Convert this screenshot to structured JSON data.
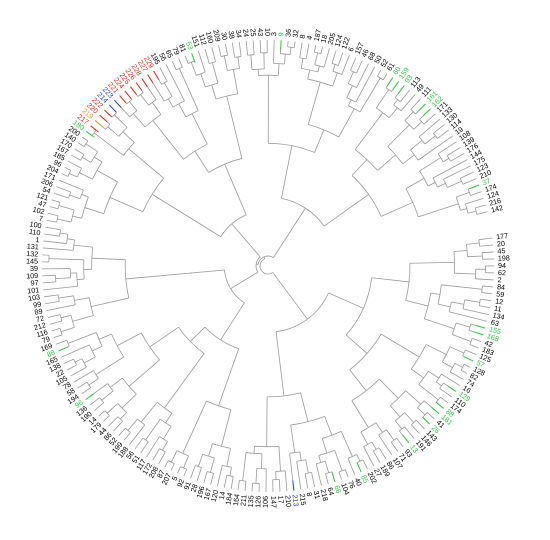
{
  "tree": {
    "colors": {
      "default": "#000000",
      "green": "#2ecc40",
      "red": "#e8261c",
      "blue": "#1f3fe0",
      "orange": "#e8a21c",
      "yellow": "#e6d21a"
    },
    "leaves": [
      {
        "label": "177",
        "color": "default"
      },
      {
        "label": "20",
        "color": "default"
      },
      {
        "label": "45",
        "color": "default"
      },
      {
        "label": "198",
        "color": "default"
      },
      {
        "label": "94",
        "color": "default"
      },
      {
        "label": "62",
        "color": "default"
      },
      {
        "label": "2",
        "color": "default"
      },
      {
        "label": "84",
        "color": "default"
      },
      {
        "label": "59",
        "color": "default"
      },
      {
        "label": "12",
        "color": "default"
      },
      {
        "label": "11",
        "color": "default"
      },
      {
        "label": "134",
        "color": "default"
      },
      {
        "label": "63",
        "color": "default"
      },
      {
        "label": "155",
        "color": "green"
      },
      {
        "label": "168",
        "color": "green"
      },
      {
        "label": "42",
        "color": "default"
      },
      {
        "label": "183",
        "color": "default"
      },
      {
        "label": "125",
        "color": "default"
      },
      {
        "label": "57",
        "color": "green"
      },
      {
        "label": "128",
        "color": "default"
      },
      {
        "label": "82",
        "color": "default"
      },
      {
        "label": "74",
        "color": "default"
      },
      {
        "label": "16",
        "color": "default"
      },
      {
        "label": "129",
        "color": "green"
      },
      {
        "label": "110",
        "color": "default"
      },
      {
        "label": "174",
        "color": "default"
      },
      {
        "label": "88",
        "color": "green"
      },
      {
        "label": "181",
        "color": "green"
      },
      {
        "label": "41",
        "color": "default"
      },
      {
        "label": "26",
        "color": "green"
      },
      {
        "label": "143",
        "color": "default"
      },
      {
        "label": "146",
        "color": "default"
      },
      {
        "label": "191",
        "color": "default"
      },
      {
        "label": "13",
        "color": "green"
      },
      {
        "label": "93",
        "color": "default"
      },
      {
        "label": "71",
        "color": "default"
      },
      {
        "label": "107",
        "color": "default"
      },
      {
        "label": "86",
        "color": "default"
      },
      {
        "label": "189",
        "color": "default"
      },
      {
        "label": "27",
        "color": "default"
      },
      {
        "label": "202",
        "color": "default"
      },
      {
        "label": "85",
        "color": "green"
      },
      {
        "label": "40",
        "color": "default"
      },
      {
        "label": "76",
        "color": "default"
      },
      {
        "label": "104",
        "color": "default"
      },
      {
        "label": "66",
        "color": "green"
      },
      {
        "label": "64",
        "color": "default"
      },
      {
        "label": "218",
        "color": "default"
      },
      {
        "label": "31",
        "color": "default"
      },
      {
        "label": "8",
        "color": "default"
      },
      {
        "label": "215",
        "color": "default"
      },
      {
        "label": "213",
        "color": "blue"
      },
      {
        "label": "210",
        "color": "default"
      },
      {
        "label": "17",
        "color": "default"
      },
      {
        "label": "147",
        "color": "default"
      },
      {
        "label": "106",
        "color": "default"
      },
      {
        "label": "126",
        "color": "default"
      },
      {
        "label": "135",
        "color": "default"
      },
      {
        "label": "211",
        "color": "default"
      },
      {
        "label": "164",
        "color": "default"
      },
      {
        "label": "184",
        "color": "default"
      },
      {
        "label": "14",
        "color": "default"
      },
      {
        "label": "120",
        "color": "default"
      },
      {
        "label": "167",
        "color": "default"
      },
      {
        "label": "196",
        "color": "default"
      },
      {
        "label": "28",
        "color": "default"
      },
      {
        "label": "91",
        "color": "default"
      },
      {
        "label": "92",
        "color": "default"
      },
      {
        "label": "5",
        "color": "default"
      },
      {
        "label": "207",
        "color": "default"
      },
      {
        "label": "87",
        "color": "default"
      },
      {
        "label": "208",
        "color": "default"
      },
      {
        "label": "172",
        "color": "default"
      },
      {
        "label": "117",
        "color": "default"
      },
      {
        "label": "51",
        "color": "default"
      },
      {
        "label": "56",
        "color": "default"
      },
      {
        "label": "188",
        "color": "default"
      },
      {
        "label": "199",
        "color": "default"
      },
      {
        "label": "52",
        "color": "default"
      },
      {
        "label": "86",
        "color": "default"
      },
      {
        "label": "44",
        "color": "default"
      },
      {
        "label": "179",
        "color": "default"
      },
      {
        "label": "14",
        "color": "default"
      },
      {
        "label": "190",
        "color": "default"
      },
      {
        "label": "136",
        "color": "default"
      },
      {
        "label": "96",
        "color": "green"
      },
      {
        "label": "194",
        "color": "default"
      },
      {
        "label": "58",
        "color": "default"
      },
      {
        "label": "78",
        "color": "default"
      },
      {
        "label": "105",
        "color": "default"
      },
      {
        "label": "22",
        "color": "default"
      },
      {
        "label": "138",
        "color": "default"
      },
      {
        "label": "165",
        "color": "default"
      },
      {
        "label": "88",
        "color": "green"
      },
      {
        "label": "169",
        "color": "default"
      },
      {
        "label": "79",
        "color": "default"
      },
      {
        "label": "116",
        "color": "default"
      },
      {
        "label": "212",
        "color": "default"
      },
      {
        "label": "72",
        "color": "default"
      },
      {
        "label": "89",
        "color": "default"
      },
      {
        "label": "99",
        "color": "default"
      },
      {
        "label": "103",
        "color": "default"
      },
      {
        "label": "101",
        "color": "default"
      },
      {
        "label": "97",
        "color": "default"
      },
      {
        "label": "109",
        "color": "default"
      },
      {
        "label": "39",
        "color": "default"
      },
      {
        "label": "145",
        "color": "default"
      },
      {
        "label": "132",
        "color": "default"
      },
      {
        "label": "131",
        "color": "default"
      },
      {
        "label": "1",
        "color": "default"
      },
      {
        "label": "110",
        "color": "default"
      },
      {
        "label": "100",
        "color": "default"
      },
      {
        "label": "7",
        "color": "default"
      },
      {
        "label": "102",
        "color": "default"
      },
      {
        "label": "47",
        "color": "default"
      },
      {
        "label": "121",
        "color": "default"
      },
      {
        "label": "54",
        "color": "default"
      },
      {
        "label": "206",
        "color": "default"
      },
      {
        "label": "171",
        "color": "default"
      },
      {
        "label": "204",
        "color": "default"
      },
      {
        "label": "96",
        "color": "default"
      },
      {
        "label": "185",
        "color": "default"
      },
      {
        "label": "167",
        "color": "default"
      },
      {
        "label": "170",
        "color": "default"
      },
      {
        "label": "140",
        "color": "default"
      },
      {
        "label": "200",
        "color": "default"
      },
      {
        "label": "180",
        "color": "green"
      },
      {
        "label": "217",
        "color": "red"
      },
      {
        "label": "219",
        "color": "orange"
      },
      {
        "label": "220",
        "color": "red"
      },
      {
        "label": "222",
        "color": "red"
      },
      {
        "label": "214",
        "color": "blue"
      },
      {
        "label": "223",
        "color": "blue"
      },
      {
        "label": "221",
        "color": "red"
      },
      {
        "label": "224",
        "color": "red"
      },
      {
        "label": "225",
        "color": "red"
      },
      {
        "label": "226",
        "color": "red"
      },
      {
        "label": "228",
        "color": "red"
      },
      {
        "label": "227",
        "color": "red"
      },
      {
        "label": "229",
        "color": "red"
      },
      {
        "label": "195",
        "color": "default"
      },
      {
        "label": "56",
        "color": "default"
      },
      {
        "label": "65",
        "color": "default"
      },
      {
        "label": "79",
        "color": "default"
      },
      {
        "label": "81",
        "color": "default"
      },
      {
        "label": "53",
        "color": "green"
      },
      {
        "label": "151",
        "color": "default"
      },
      {
        "label": "112",
        "color": "default"
      },
      {
        "label": "160",
        "color": "default"
      },
      {
        "label": "209",
        "color": "default"
      },
      {
        "label": "30",
        "color": "default"
      },
      {
        "label": "38",
        "color": "default"
      },
      {
        "label": "34",
        "color": "default"
      },
      {
        "label": "24",
        "color": "default"
      },
      {
        "label": "25",
        "color": "default"
      },
      {
        "label": "43",
        "color": "default"
      },
      {
        "label": "10",
        "color": "default"
      },
      {
        "label": "3",
        "color": "default"
      },
      {
        "label": "9",
        "color": "green"
      },
      {
        "label": "36",
        "color": "default"
      },
      {
        "label": "32",
        "color": "default"
      },
      {
        "label": "8",
        "color": "default"
      },
      {
        "label": "4",
        "color": "default"
      },
      {
        "label": "187",
        "color": "default"
      },
      {
        "label": "18",
        "color": "default"
      },
      {
        "label": "205",
        "color": "default"
      },
      {
        "label": "124",
        "color": "default"
      },
      {
        "label": "122",
        "color": "default"
      },
      {
        "label": "6",
        "color": "default"
      },
      {
        "label": "157",
        "color": "default"
      },
      {
        "label": "46",
        "color": "default"
      },
      {
        "label": "68",
        "color": "default"
      },
      {
        "label": "50",
        "color": "default"
      },
      {
        "label": "52",
        "color": "default"
      },
      {
        "label": "61",
        "color": "default"
      },
      {
        "label": "60",
        "color": "green"
      },
      {
        "label": "159",
        "color": "green"
      },
      {
        "label": "93",
        "color": "green"
      },
      {
        "label": "113",
        "color": "default"
      },
      {
        "label": "49",
        "color": "default"
      },
      {
        "label": "111",
        "color": "default"
      },
      {
        "label": "161",
        "color": "green"
      },
      {
        "label": "162",
        "color": "green"
      },
      {
        "label": "171",
        "color": "default"
      },
      {
        "label": "133",
        "color": "default"
      },
      {
        "label": "130",
        "color": "default"
      },
      {
        "label": "114",
        "color": "default"
      },
      {
        "label": "19",
        "color": "default"
      },
      {
        "label": "108",
        "color": "default"
      },
      {
        "label": "139",
        "color": "default"
      },
      {
        "label": "176",
        "color": "default"
      },
      {
        "label": "144",
        "color": "default"
      },
      {
        "label": "175",
        "color": "default"
      },
      {
        "label": "123",
        "color": "default"
      },
      {
        "label": "210",
        "color": "default"
      },
      {
        "label": "37",
        "color": "green"
      },
      {
        "label": "174",
        "color": "default"
      },
      {
        "label": "124",
        "color": "default"
      },
      {
        "label": "216",
        "color": "default"
      },
      {
        "label": "142",
        "color": "default"
      }
    ]
  }
}
